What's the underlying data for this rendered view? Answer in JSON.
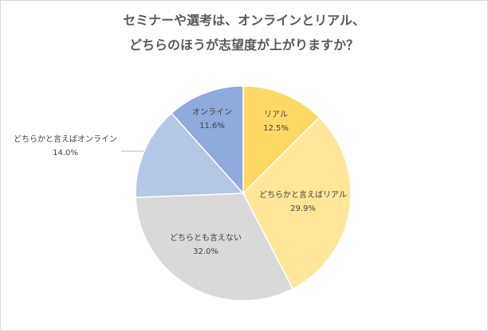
{
  "chart_data": {
    "type": "pie",
    "title_lines": [
      "セミナーや選考は、オンラインとリアル、",
      "どちらのほうが志望度が上がりますか？"
    ],
    "slices": [
      {
        "label": "リアル",
        "value": 12.5,
        "value_label": "12.5%",
        "color": "#FFD966"
      },
      {
        "label": "どちらかと言えばリアル",
        "value": 29.9,
        "value_label": "29.9%",
        "color": "#FFE699"
      },
      {
        "label": "どちらとも言えない",
        "value": 32.0,
        "value_label": "32.0%",
        "color": "#D9D9D9"
      },
      {
        "label": "どちらかと言えばオンライン",
        "value": 14.0,
        "value_label": "14.0%",
        "color": "#B4C7E7"
      },
      {
        "label": "オンライン",
        "value": 11.6,
        "value_label": "11.6%",
        "color": "#8FAADC"
      }
    ],
    "legend": "none"
  }
}
